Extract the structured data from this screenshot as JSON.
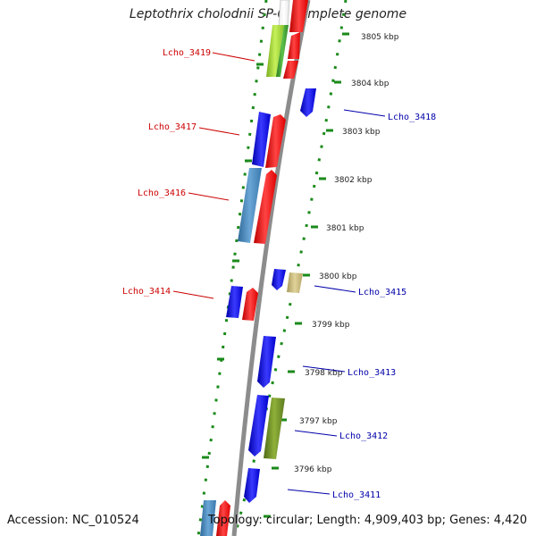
{
  "header": {
    "title": "Leptothrix cholodnii SP-6, complete genome"
  },
  "footer": {
    "accession": "Accession: NC_010524",
    "summary": "Topology: circular; Length: 4,909,403 bp; Genes: 4,420"
  },
  "scale": {
    "ticks": [
      "3805 kbp",
      "3804 kbp",
      "3803 kbp",
      "3802 kbp",
      "3801 kbp",
      "3800 kbp",
      "3799 kbp",
      "3798 kbp",
      "3797 kbp",
      "3796 kbp"
    ]
  },
  "labels": {
    "left": [
      "Lcho_3419",
      "Lcho_3417",
      "Lcho_3416",
      "Lcho_3414"
    ],
    "right": [
      "Lcho_3418",
      "Lcho_3415",
      "Lcho_3413",
      "Lcho_3412",
      "Lcho_3411"
    ]
  },
  "colors": {
    "left_label": "#cc0000",
    "right_label": "#0000aa",
    "backbone": "#8c8c8c",
    "dotted_ring": "#1a8a1a",
    "gene_red": "#ee0000",
    "gene_blue": "#0000ee",
    "gene_steel": "#4682b4",
    "gene_olive": "#6b8e23",
    "gene_khaki": "#c8b97a",
    "gene_lime": "#9acd32"
  }
}
